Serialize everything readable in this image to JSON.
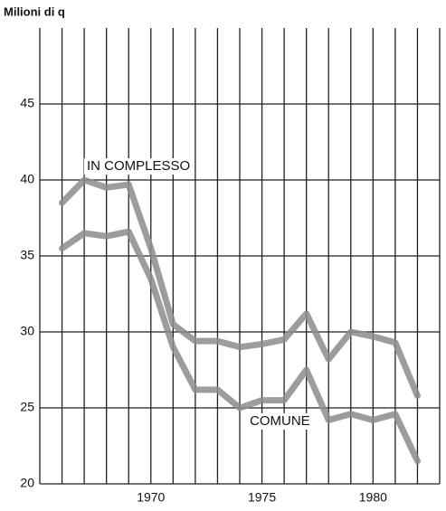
{
  "chart_data": {
    "type": "line",
    "y_axis_label": "Milioni di q",
    "x": [
      1966,
      1967,
      1968,
      1969,
      1970,
      1971,
      1972,
      1973,
      1974,
      1975,
      1976,
      1977,
      1978,
      1979,
      1980,
      1981,
      1982
    ],
    "series": [
      {
        "name": "IN COMPLESSO",
        "color": "#8c8c8c",
        "values": [
          38.5,
          40.0,
          39.5,
          39.7,
          35.5,
          30.5,
          29.4,
          29.4,
          29.0,
          29.2,
          29.5,
          31.2,
          28.2,
          30.0,
          29.7,
          29.3,
          25.8
        ]
      },
      {
        "name": "COMUNE",
        "color": "#8c8c8c",
        "values": [
          35.5,
          36.5,
          36.3,
          36.6,
          33.5,
          29.0,
          26.2,
          26.2,
          25.0,
          25.5,
          25.5,
          27.5,
          24.2,
          24.6,
          24.2,
          24.6,
          21.5
        ]
      }
    ],
    "xlim": [
      1965,
      1983
    ],
    "xticks": [
      1970,
      1975,
      1980
    ],
    "xgrid": [
      1965,
      1966,
      1967,
      1968,
      1969,
      1970,
      1971,
      1972,
      1973,
      1974,
      1975,
      1976,
      1977,
      1978,
      1979,
      1980,
      1981,
      1982,
      1983
    ],
    "ylim": [
      20,
      50
    ],
    "yticks": [
      20,
      25,
      30,
      35,
      40,
      45
    ],
    "grid": true
  }
}
